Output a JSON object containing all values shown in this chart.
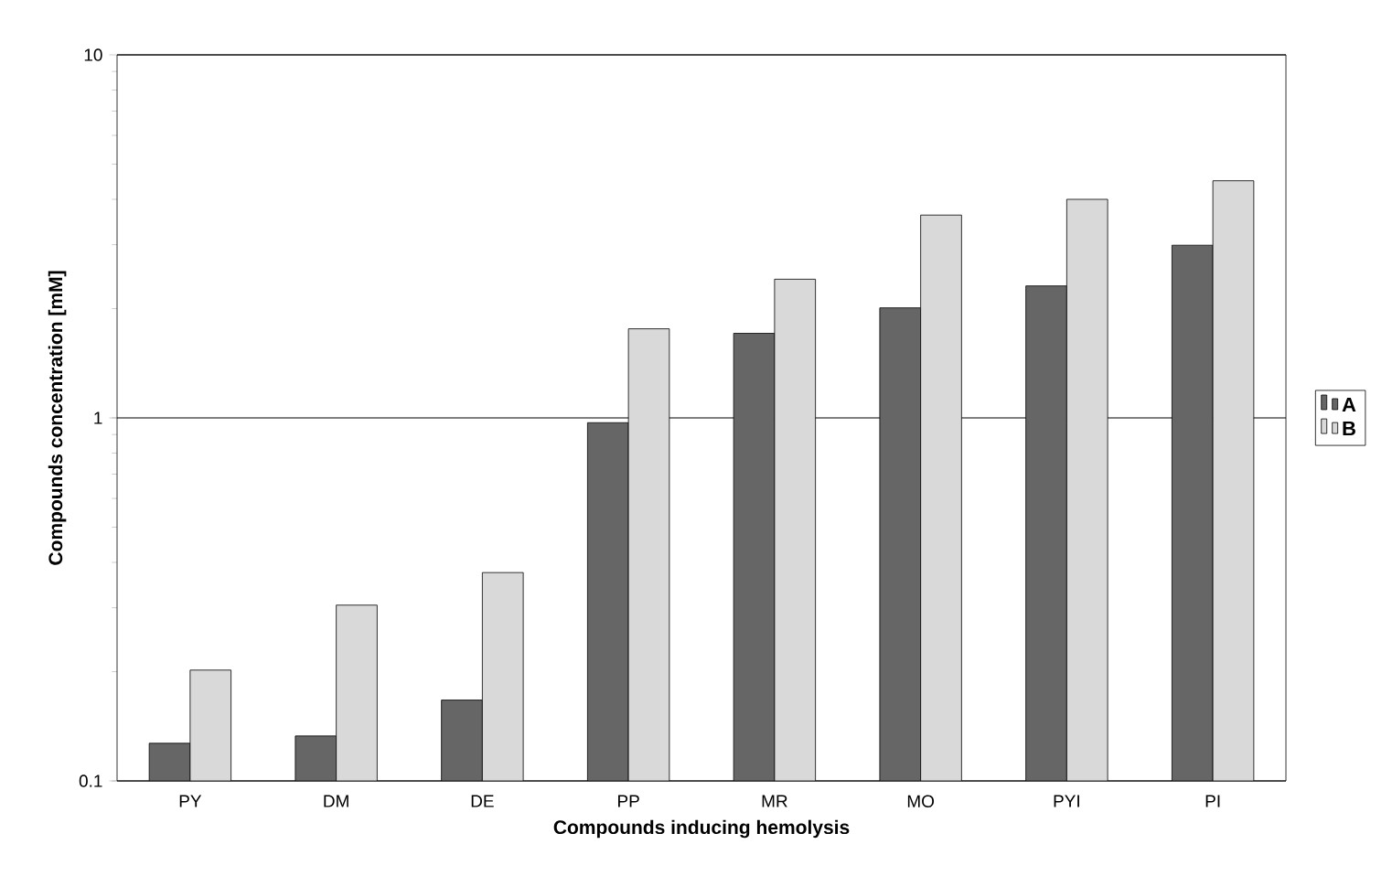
{
  "chart_data": {
    "type": "bar",
    "xlabel": "Compounds inducing hemolysis",
    "ylabel": "Compounds concentration [mM]",
    "categories": [
      "PY",
      "DM",
      "DE",
      "PP",
      "MR",
      "MO",
      "PYI",
      "PI"
    ],
    "series": [
      {
        "name": "A",
        "color": "#666666",
        "values": [
          0.127,
          0.133,
          0.167,
          0.97,
          1.71,
          2.01,
          2.31,
          2.99
        ]
      },
      {
        "name": "B",
        "color": "#d9d9d9",
        "values": [
          0.202,
          0.305,
          0.375,
          1.76,
          2.41,
          3.62,
          4.0,
          4.5
        ]
      }
    ],
    "log": "y",
    "ylim": [
      0.1,
      10
    ],
    "yticks": [
      0.1,
      1,
      10
    ],
    "grid": "y",
    "legend": "right"
  }
}
